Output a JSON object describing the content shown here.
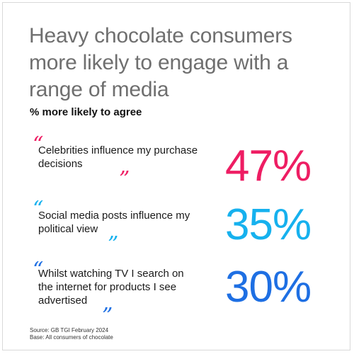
{
  "chart_data": {
    "type": "table",
    "title": "Heavy chocolate consumers more likely to engage with a range of media",
    "subtitle": "% more likely to agree",
    "categories": [
      "Celebrities influence my purchase decisions",
      "Social media posts influence my political view",
      "Whilst watching TV I search on the internet for products I see advertised"
    ],
    "values": [
      47,
      35,
      30
    ],
    "value_labels": [
      "47%",
      "35%",
      "30%"
    ],
    "colors": [
      "#ee1d63",
      "#16b1ee",
      "#1e6fe3"
    ]
  },
  "quotes": {
    "open": "“",
    "close": "”"
  },
  "footer": {
    "source": "Source: GB TGI February 2024",
    "base": "Base: All consumers of chocolate"
  }
}
